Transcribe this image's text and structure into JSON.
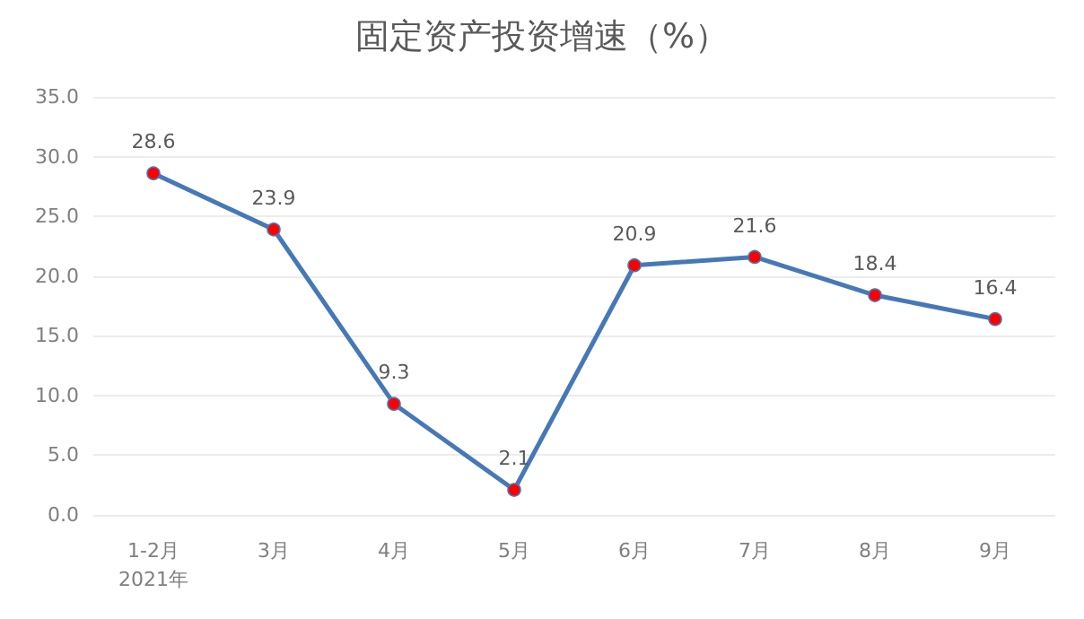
{
  "chart_data": {
    "type": "line",
    "title": "固定资产投资增速（%）",
    "categories": [
      "1-2月\n2021年",
      "3月",
      "4月",
      "5月",
      "6月",
      "7月",
      "8月",
      "9月"
    ],
    "series": [
      {
        "color": "#4678b8",
        "colors": [
          "#ff0000",
          "#ff0000",
          "#ff0000",
          "#ff0000",
          "#ff0000",
          "#ff0000",
          "#ff0000",
          "#ff0000"
        ],
        "values": [
          28.6,
          23.9,
          9.3,
          2.1,
          20.9,
          21.6,
          18.4,
          16.4
        ]
      }
    ],
    "ylim": [
      0,
      35
    ],
    "yticks": [
      {
        "value": 0,
        "label": "0.0"
      },
      {
        "value": 5,
        "label": "5.0"
      },
      {
        "value": 10,
        "label": "10.0"
      },
      {
        "value": 15,
        "label": "15.0"
      },
      {
        "value": 20,
        "label": "20.0"
      },
      {
        "value": 25,
        "label": "25.0"
      },
      {
        "value": 30,
        "label": "30.0"
      },
      {
        "value": 35,
        "label": "35.0"
      }
    ],
    "grid": "y",
    "marker": "circle",
    "line_style": "solid",
    "data_labels": true
  }
}
